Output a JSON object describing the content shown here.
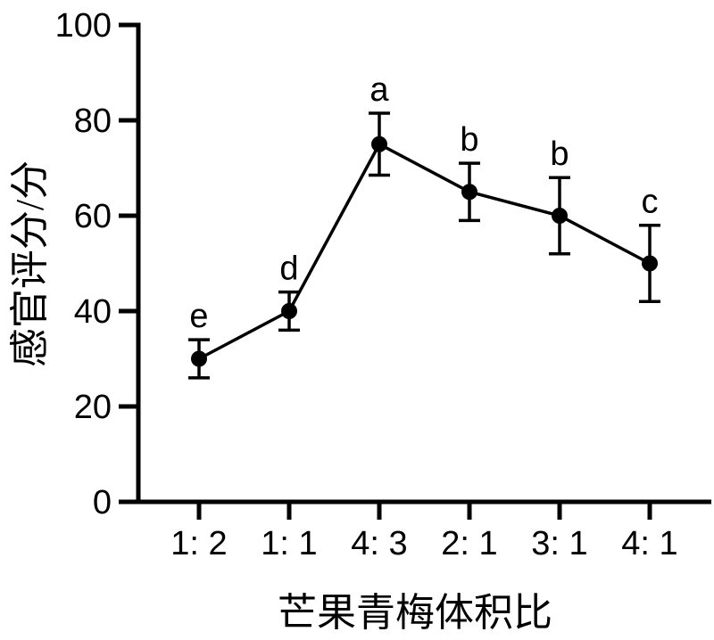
{
  "page": {
    "background": "#ffffff"
  },
  "chart_data": {
    "type": "line",
    "title": "",
    "xlabel": "芒果青梅体积比",
    "ylabel": "感官评分/分",
    "categories": [
      "1: 2",
      "1: 1",
      "4: 3",
      "2: 1",
      "3: 1",
      "4: 1"
    ],
    "series": [
      {
        "values": [
          30,
          40,
          75,
          65,
          60,
          50
        ],
        "errors": [
          4,
          4,
          6.5,
          6,
          8,
          8
        ],
        "point_labels": [
          "e",
          "d",
          "a",
          "b",
          "b",
          "c"
        ]
      }
    ],
    "ylim": [
      0,
      100
    ],
    "yticks": [
      0,
      20,
      40,
      60,
      80,
      100
    ],
    "grid": false,
    "legend": "none",
    "marker": "filled-circle",
    "line_color": "#000000",
    "axis_color": "#000000",
    "background": "#ffffff"
  }
}
